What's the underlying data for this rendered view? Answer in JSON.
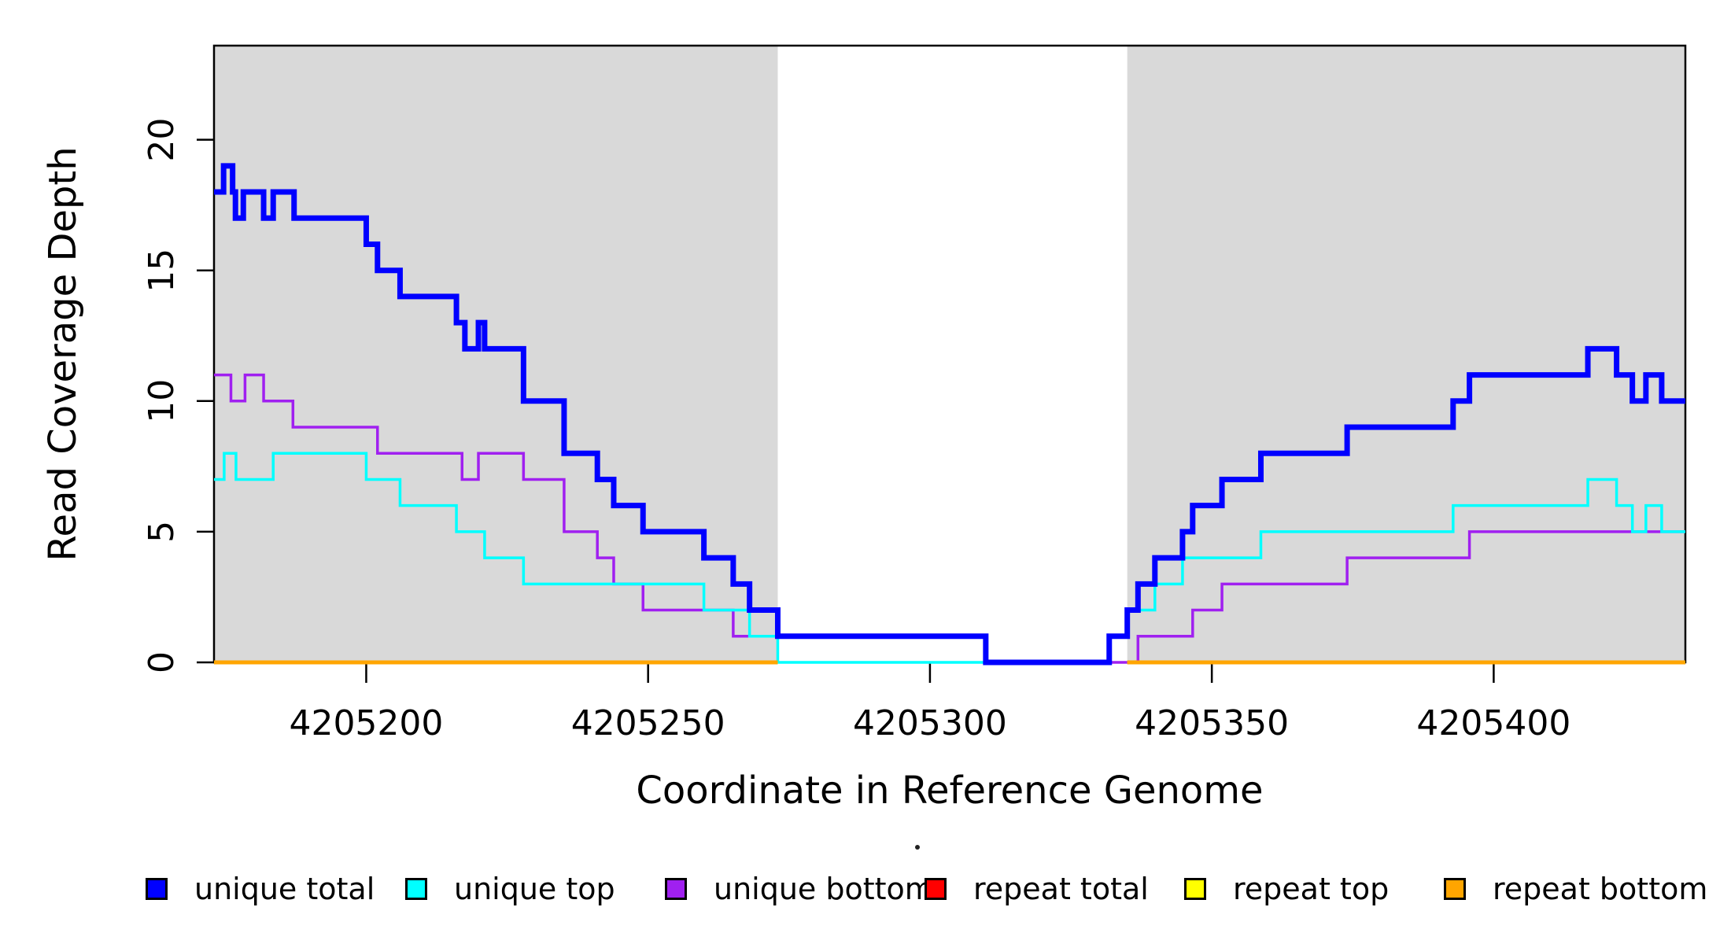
{
  "figure": {
    "type": "R-style read coverage step plot",
    "x_axis_title": "Coordinate in Reference Genome",
    "y_axis_title": "Read Coverage Depth"
  },
  "legend": {
    "items": [
      {
        "label": "unique total",
        "color": "#0000FF"
      },
      {
        "label": "unique top",
        "color": "#00FFFF"
      },
      {
        "label": "unique bottom",
        "color": "#A020F0"
      },
      {
        "label": "repeat total",
        "color": "#FF0000"
      },
      {
        "label": "repeat top",
        "color": "#FFFF00"
      },
      {
        "label": "repeat bottom",
        "color": "#FFA500"
      }
    ]
  },
  "chart_data": {
    "type": "line",
    "subtype": "step-coverage",
    "title": "",
    "xlabel": "Coordinate in Reference Genome",
    "ylabel": "Read Coverage Depth",
    "xlim": [
      4205173,
      4205434
    ],
    "ylim": [
      0,
      23.6
    ],
    "x_ticks": [
      4205200,
      4205250,
      4205300,
      4205350,
      4205400
    ],
    "y_ticks": [
      0,
      5,
      10,
      15,
      20
    ],
    "grid": false,
    "legend_position": "bottom",
    "background_color": "#FFFFFF",
    "panel_color": "#D9D9D9",
    "axis_color": "#000000",
    "shaded_regions": [
      {
        "x1": 4205173,
        "x2": 4205273,
        "color": "#D9D9D9"
      },
      {
        "x1": 4205335,
        "x2": 4205434,
        "color": "#D9D9D9"
      }
    ],
    "annotations": {
      "stray_dot_x": 1163,
      "stray_dot_y": 1074
    },
    "series": [
      {
        "name": "unique bottom",
        "color": "#A020F0",
        "line_width": 3.5,
        "segments": [
          {
            "end": 4205434,
            "points": [
              [
                4205173,
                11
              ],
              [
                4205176,
                10
              ],
              [
                4205178.5,
                11
              ],
              [
                4205181.8,
                10
              ],
              [
                4205187,
                9
              ],
              [
                4205202,
                8
              ],
              [
                4205217,
                7
              ],
              [
                4205219.9,
                8
              ],
              [
                4205227.9,
                7
              ],
              [
                4205235.1,
                5
              ],
              [
                4205241,
                4
              ],
              [
                4205243.9,
                3
              ],
              [
                4205249.1,
                2
              ],
              [
                4205265.1,
                1
              ],
              [
                4205309.9,
                0
              ],
              [
                4205336.9,
                1
              ],
              [
                4205346.6,
                2
              ],
              [
                4205351.8,
                3
              ],
              [
                4205374,
                4
              ],
              [
                4205395.7,
                5
              ]
            ]
          }
        ]
      },
      {
        "name": "unique top",
        "color": "#00FFFF",
        "line_width": 3.5,
        "segments": [
          {
            "end": 4205434,
            "points": [
              [
                4205173,
                7
              ],
              [
                4205174.8,
                8
              ],
              [
                4205176.9,
                7
              ],
              [
                4205183.5,
                8
              ],
              [
                4205200,
                7
              ],
              [
                4205206,
                6
              ],
              [
                4205216,
                5
              ],
              [
                4205221,
                4
              ],
              [
                4205227.9,
                3
              ],
              [
                4205259.9,
                2
              ],
              [
                4205268,
                1
              ],
              [
                4205273,
                0
              ],
              [
                4205331.8,
                1
              ],
              [
                4205335,
                2
              ],
              [
                4205339.9,
                3
              ],
              [
                4205344.8,
                4
              ],
              [
                4205358.7,
                5
              ],
              [
                4205392.8,
                6
              ],
              [
                4205416.7,
                7
              ],
              [
                4205421.8,
                6
              ],
              [
                4205424.6,
                5
              ],
              [
                4205427,
                6
              ],
              [
                4205429.8,
                5
              ]
            ]
          }
        ]
      },
      {
        "name": "unique total",
        "color": "#0000FF",
        "line_width": 7,
        "segments": [
          {
            "end": 4205434,
            "points": [
              [
                4205173,
                18
              ],
              [
                4205174.7,
                19
              ],
              [
                4205176.3,
                18
              ],
              [
                4205176.8,
                17
              ],
              [
                4205178.2,
                18
              ],
              [
                4205181.8,
                17
              ],
              [
                4205183.5,
                18
              ],
              [
                4205187.2,
                17
              ],
              [
                4205200,
                16
              ],
              [
                4205202,
                15
              ],
              [
                4205206,
                14
              ],
              [
                4205216,
                13
              ],
              [
                4205217.5,
                12
              ],
              [
                4205219.9,
                13
              ],
              [
                4205221,
                12
              ],
              [
                4205227.9,
                10
              ],
              [
                4205235.1,
                8
              ],
              [
                4205241,
                7
              ],
              [
                4205243.9,
                6
              ],
              [
                4205249.1,
                5
              ],
              [
                4205259.9,
                4
              ],
              [
                4205265.1,
                3
              ],
              [
                4205268,
                2
              ],
              [
                4205273,
                1
              ],
              [
                4205309.9,
                0
              ],
              [
                4205331.8,
                1
              ],
              [
                4205335,
                2
              ],
              [
                4205336.9,
                3
              ],
              [
                4205339.9,
                4
              ],
              [
                4205344.8,
                5
              ],
              [
                4205346.6,
                6
              ],
              [
                4205351.8,
                7
              ],
              [
                4205358.7,
                8
              ],
              [
                4205374,
                9
              ],
              [
                4205392.8,
                10
              ],
              [
                4205395.7,
                11
              ],
              [
                4205416.7,
                12
              ],
              [
                4205421.8,
                11
              ],
              [
                4205424.6,
                10
              ],
              [
                4205427,
                11
              ],
              [
                4205429.8,
                10
              ]
            ]
          }
        ]
      },
      {
        "name": "repeat total",
        "color": "#FF0000",
        "line_width": 3.5,
        "segments": [
          {
            "end": 4205273,
            "points": [
              [
                4205173,
                0
              ]
            ]
          },
          {
            "end": 4205434,
            "points": [
              [
                4205335,
                0
              ]
            ]
          }
        ]
      },
      {
        "name": "repeat top",
        "color": "#FFFF00",
        "line_width": 3.5,
        "segments": [
          {
            "end": 4205273,
            "points": [
              [
                4205173,
                0
              ]
            ]
          },
          {
            "end": 4205434,
            "points": [
              [
                4205335,
                0
              ]
            ]
          }
        ]
      },
      {
        "name": "repeat bottom",
        "color": "#FFA500",
        "line_width": 5,
        "segments": [
          {
            "end": 4205273,
            "points": [
              [
                4205173,
                0
              ]
            ]
          },
          {
            "end": 4205434,
            "points": [
              [
                4205335,
                0
              ]
            ]
          }
        ]
      }
    ]
  }
}
